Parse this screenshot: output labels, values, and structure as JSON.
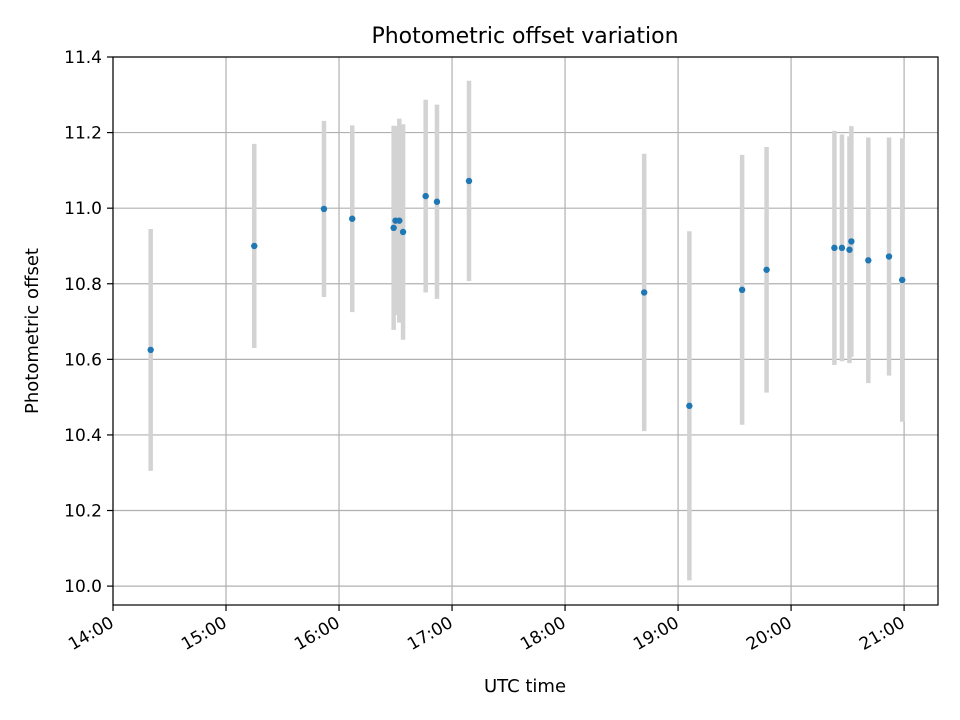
{
  "chart_data": {
    "type": "scatter",
    "title": "Photometric offset variation",
    "xlabel": "UTC time",
    "ylabel": "Photometric offset",
    "xlim": [
      "14:00",
      "21:18"
    ],
    "ylim": [
      9.95,
      11.4
    ],
    "xticks": [
      "14:00",
      "15:00",
      "16:00",
      "17:00",
      "18:00",
      "19:00",
      "20:00",
      "21:00"
    ],
    "yticks": [
      10.0,
      10.2,
      10.4,
      10.6,
      10.8,
      11.0,
      11.2,
      11.4
    ],
    "ytick_labels": [
      "10.0",
      "10.2",
      "10.4",
      "10.6",
      "10.8",
      "11.0",
      "11.2",
      "11.4"
    ],
    "grid": true,
    "colors": {
      "points": "#1f77b4",
      "errorbars": "#d3d3d3",
      "grid": "#b0b0b0"
    },
    "series": [
      {
        "points": [
          {
            "x": "14:20",
            "y": 10.625,
            "err": 0.32
          },
          {
            "x": "15:15",
            "y": 10.9,
            "err": 0.27
          },
          {
            "x": "15:52",
            "y": 10.998,
            "err": 0.233
          },
          {
            "x": "16:07",
            "y": 10.972,
            "err": 0.247
          },
          {
            "x": "16:29",
            "y": 10.948,
            "err": 0.27
          },
          {
            "x": "16:30",
            "y": 10.967,
            "err": 0.25
          },
          {
            "x": "16:32",
            "y": 10.967,
            "err": 0.27
          },
          {
            "x": "16:34",
            "y": 10.937,
            "err": 0.285
          },
          {
            "x": "16:46",
            "y": 11.032,
            "err": 0.255
          },
          {
            "x": "16:52",
            "y": 11.017,
            "err": 0.257
          },
          {
            "x": "17:09",
            "y": 11.072,
            "err": 0.265
          },
          {
            "x": "18:42",
            "y": 10.777,
            "err": 0.367
          },
          {
            "x": "19:06",
            "y": 10.477,
            "err": 0.462
          },
          {
            "x": "19:34",
            "y": 10.784,
            "err": 0.357
          },
          {
            "x": "19:47",
            "y": 10.837,
            "err": 0.325
          },
          {
            "x": "20:23",
            "y": 10.895,
            "err": 0.31
          },
          {
            "x": "20:27",
            "y": 10.895,
            "err": 0.3
          },
          {
            "x": "20:31",
            "y": 10.89,
            "err": 0.3
          },
          {
            "x": "20:32",
            "y": 10.912,
            "err": 0.305
          },
          {
            "x": "20:41",
            "y": 10.862,
            "err": 0.325
          },
          {
            "x": "20:52",
            "y": 10.872,
            "err": 0.315
          },
          {
            "x": "20:59",
            "y": 10.81,
            "err": 0.375
          }
        ]
      }
    ]
  }
}
